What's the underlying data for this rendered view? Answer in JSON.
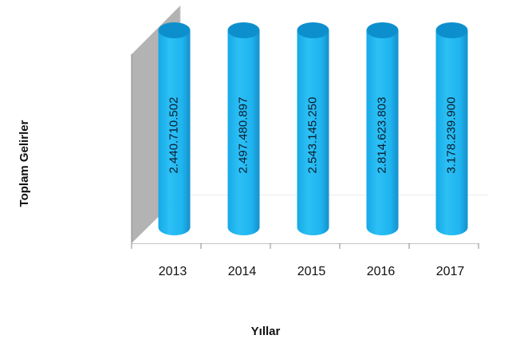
{
  "chart_data": {
    "type": "bar",
    "title": "",
    "xlabel": "Yıllar",
    "ylabel": "Toplam Gelirler",
    "categories": [
      "2013",
      "2014",
      "2015",
      "2016",
      "2017"
    ],
    "values": [
      2440710502,
      2497480897,
      2543145250,
      2814623803,
      3178239900
    ],
    "data_labels": [
      "2.440.710.502",
      "2.497.480.897",
      "2.543.145.250",
      "2.814.623.803",
      "3.178.239.900"
    ],
    "grid": false,
    "legend": "none",
    "colors": {
      "bar": "#1fb4ef",
      "bar_top": "#0d8fce",
      "wall": "#b3b3b3"
    }
  }
}
